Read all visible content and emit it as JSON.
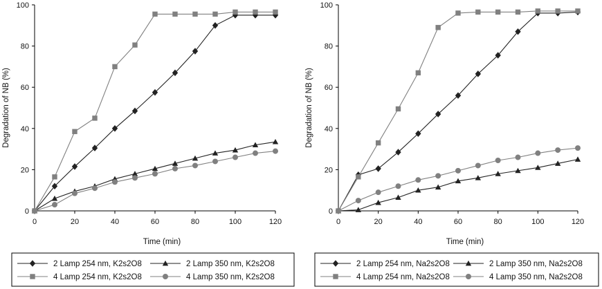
{
  "chart_data": [
    {
      "type": "line",
      "title": "",
      "xlabel": "Time (min)",
      "ylabel": "Degradation of NB (%)",
      "xlim": [
        0,
        120
      ],
      "ylim": [
        0,
        100
      ],
      "xticks": [
        0,
        20,
        40,
        60,
        80,
        100,
        120
      ],
      "yticks": [
        0,
        20,
        40,
        60,
        80,
        100
      ],
      "grid": false,
      "legend_position": "bottom",
      "series": [
        {
          "name": "2 Lamp 254 nm, K2s2O8",
          "marker": "diamond",
          "color": "#222222",
          "x": [
            0,
            10,
            20,
            30,
            40,
            50,
            60,
            70,
            80,
            90,
            100,
            110,
            120
          ],
          "y": [
            0,
            12,
            21.5,
            30.5,
            40,
            48.5,
            57.5,
            67,
            77.5,
            90,
            95,
            95,
            95
          ]
        },
        {
          "name": "2 Lamp 350 nm, K2s2O8",
          "marker": "triangle",
          "color": "#222222",
          "x": [
            0,
            10,
            20,
            30,
            40,
            50,
            60,
            70,
            80,
            90,
            100,
            110,
            120
          ],
          "y": [
            0,
            6,
            9.5,
            12,
            15.5,
            18,
            20.5,
            23,
            25.5,
            28,
            29.5,
            32,
            33.5
          ]
        },
        {
          "name": "4 Lamp 254 nm, K2s2O8",
          "marker": "square",
          "color": "#808080",
          "x": [
            0,
            10,
            20,
            30,
            40,
            50,
            60,
            70,
            80,
            90,
            100,
            110,
            120
          ],
          "y": [
            0,
            16.5,
            38.5,
            45,
            70,
            80.5,
            95.5,
            95.5,
            95.5,
            95.5,
            96.5,
            96.5,
            96.5
          ]
        },
        {
          "name": "4 Lamp 350 nm, K2s2O8",
          "marker": "circle",
          "color": "#808080",
          "x": [
            0,
            10,
            20,
            30,
            40,
            50,
            60,
            70,
            80,
            90,
            100,
            110,
            120
          ],
          "y": [
            0,
            3,
            8.5,
            11,
            14,
            16,
            18,
            20.5,
            22,
            24,
            26,
            28,
            29
          ]
        }
      ]
    },
    {
      "type": "line",
      "title": "",
      "xlabel": "Time (min)",
      "ylabel": "Degradation of NB (%)",
      "xlim": [
        0,
        120
      ],
      "ylim": [
        0,
        100
      ],
      "xticks": [
        0,
        20,
        40,
        60,
        80,
        100,
        120
      ],
      "yticks": [
        0,
        20,
        40,
        60,
        80,
        100
      ],
      "grid": false,
      "legend_position": "bottom",
      "series": [
        {
          "name": "2 Lamp 254 nm, Na2s2O8",
          "marker": "diamond",
          "color": "#222222",
          "x": [
            0,
            10,
            20,
            30,
            40,
            50,
            60,
            70,
            80,
            90,
            100,
            110,
            120
          ],
          "y": [
            0,
            17.5,
            20.5,
            28.5,
            37.5,
            47,
            56,
            66.5,
            75.5,
            87,
            96,
            96,
            96.5
          ]
        },
        {
          "name": "2 Lamp 350 nm, Na2s2O8",
          "marker": "triangle",
          "color": "#222222",
          "x": [
            0,
            10,
            20,
            30,
            40,
            50,
            60,
            70,
            80,
            90,
            100,
            110,
            120
          ],
          "y": [
            0,
            0.5,
            4,
            6.5,
            10,
            11.5,
            14.5,
            16,
            18,
            19.5,
            21,
            23,
            25
          ]
        },
        {
          "name": "4 Lamp 254 nm, Na2s2O8",
          "marker": "square",
          "color": "#808080",
          "x": [
            0,
            10,
            20,
            30,
            40,
            50,
            60,
            70,
            80,
            90,
            100,
            110,
            120
          ],
          "y": [
            0,
            16.5,
            33,
            49.5,
            67,
            89,
            96,
            96.5,
            96.5,
            96.5,
            97,
            97,
            97
          ]
        },
        {
          "name": "4 Lamp 350 nm, Na2s2O8",
          "marker": "circle",
          "color": "#808080",
          "x": [
            0,
            10,
            20,
            30,
            40,
            50,
            60,
            70,
            80,
            90,
            100,
            110,
            120
          ],
          "y": [
            0,
            5,
            9,
            12,
            15,
            17,
            19.5,
            22,
            24.5,
            26,
            28,
            29.5,
            30.5
          ]
        }
      ]
    }
  ]
}
